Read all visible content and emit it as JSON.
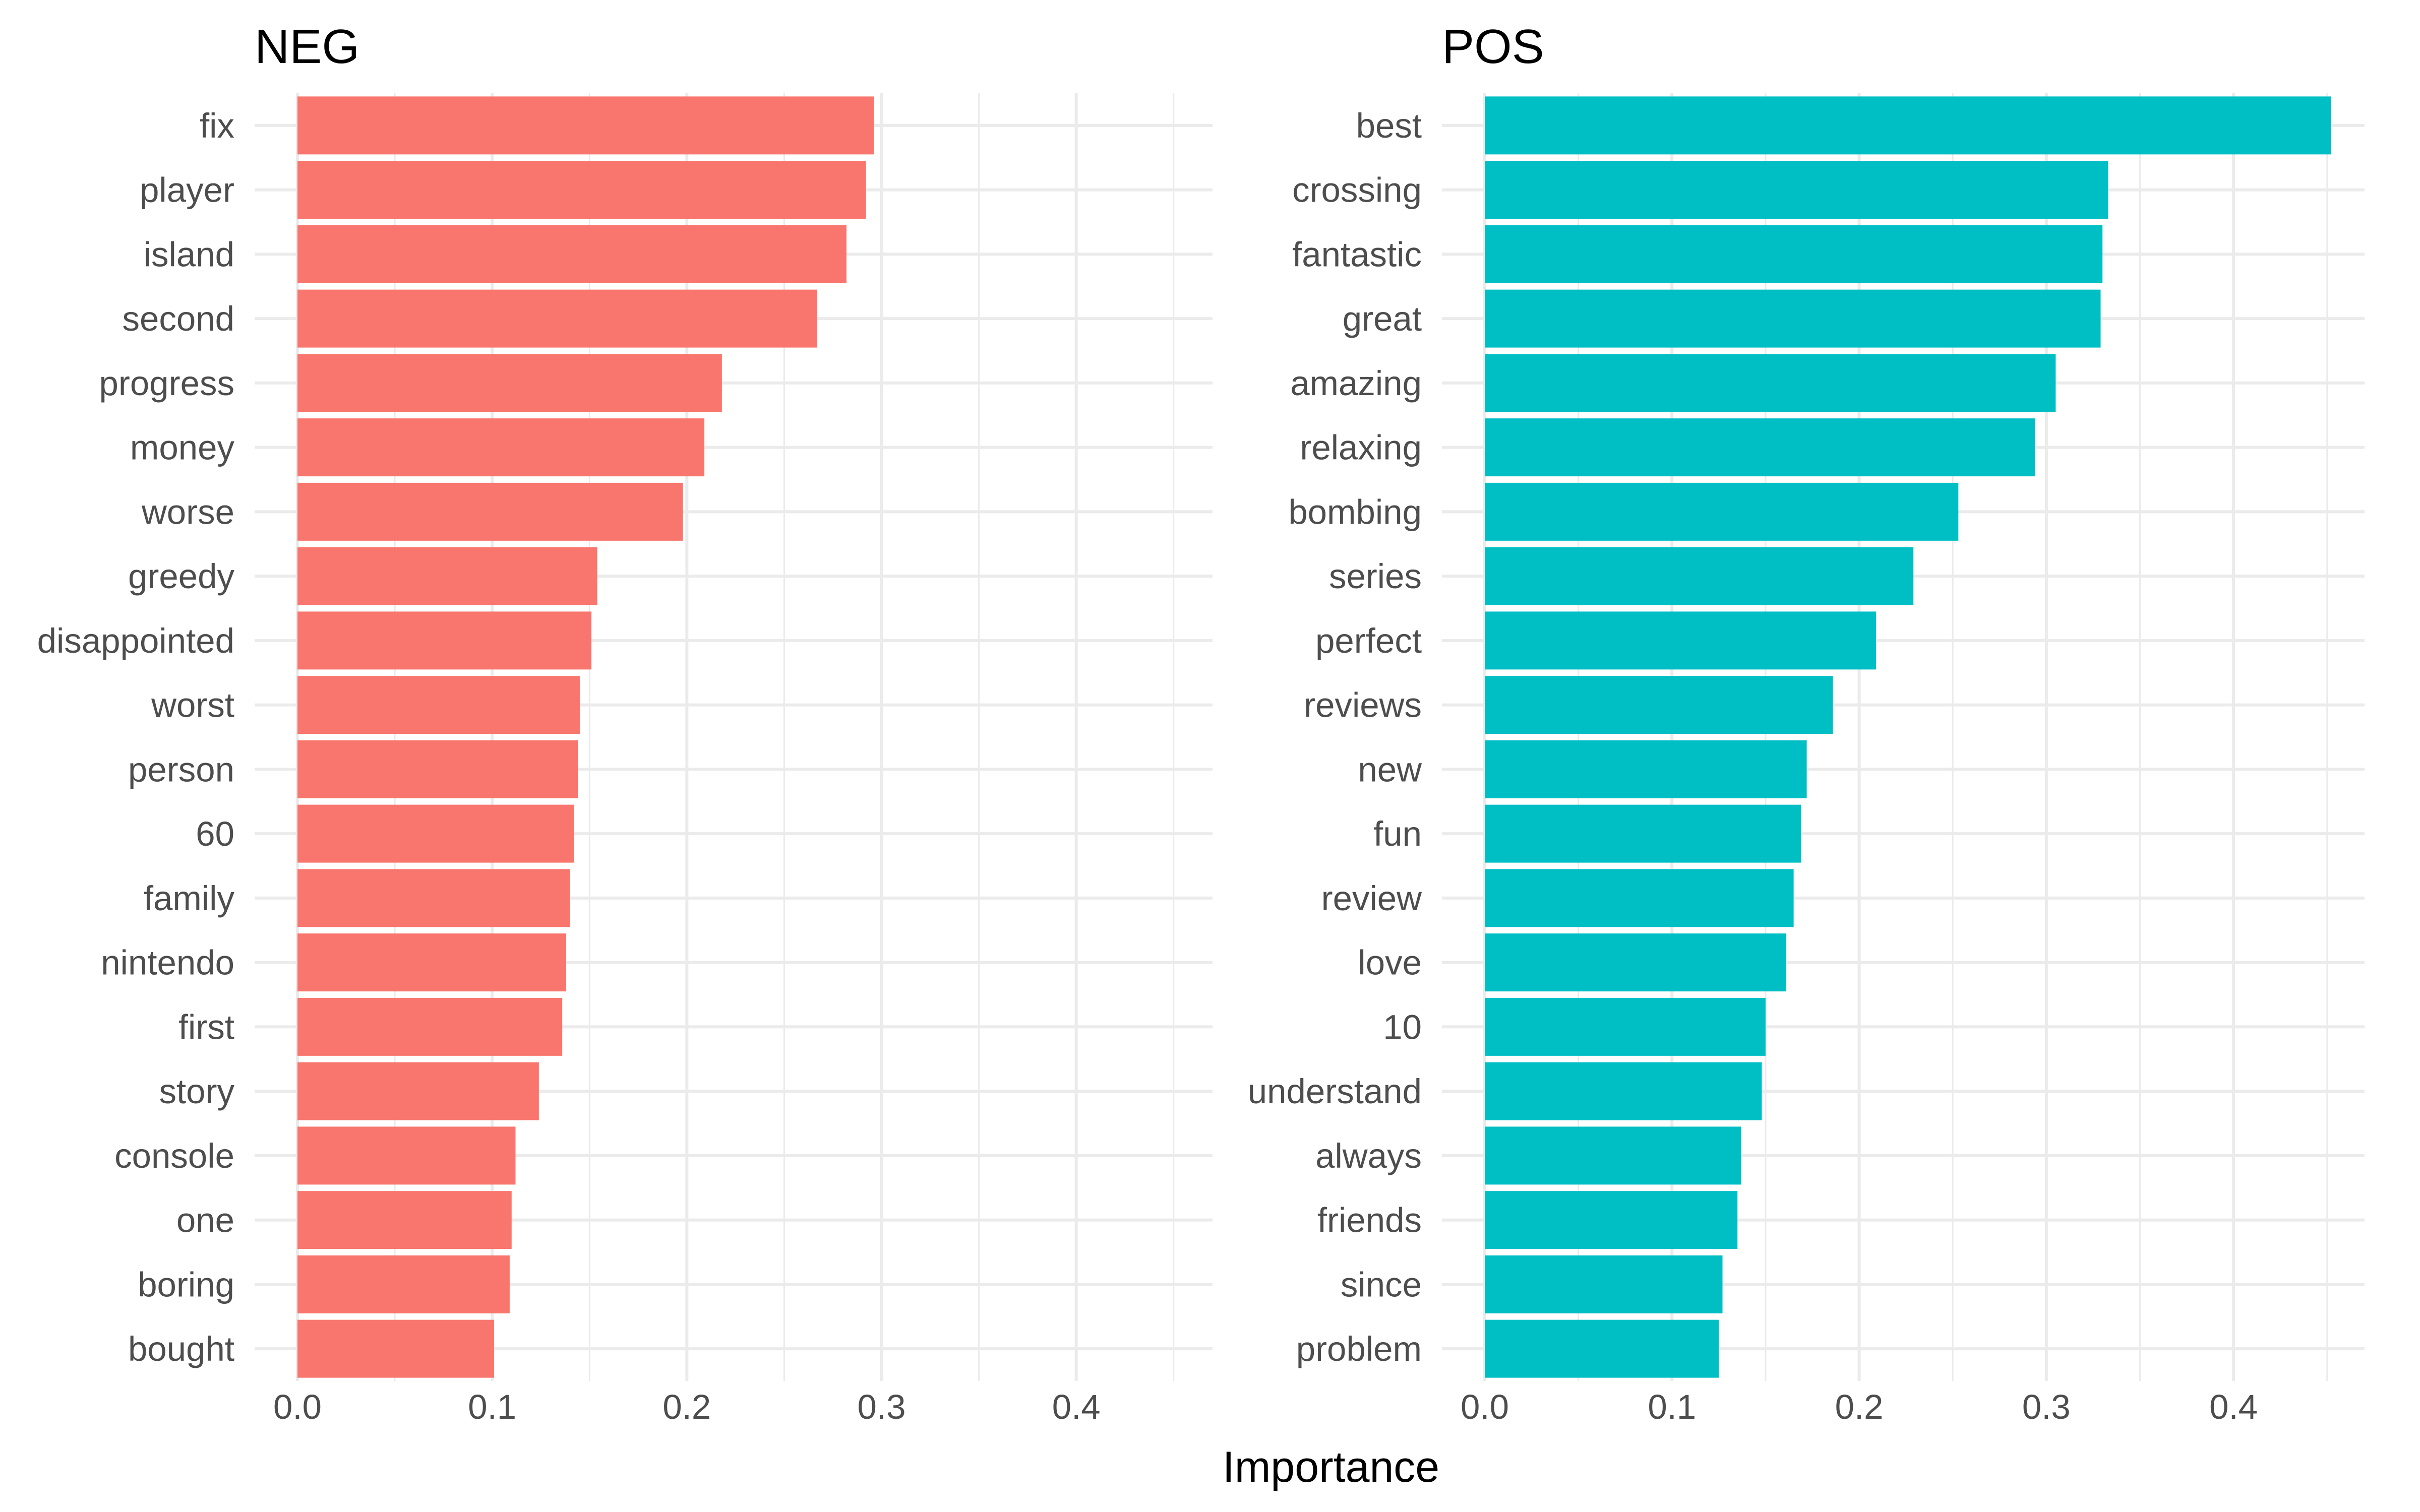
{
  "chart_data": {
    "type": "bar",
    "orientation": "horizontal",
    "xlabel": "Importance",
    "xlim": [
      0,
      0.47
    ],
    "xticks": [
      "0.0",
      "0.1",
      "0.2",
      "0.3",
      "0.4"
    ],
    "grid": true,
    "panels": [
      {
        "title": "NEG",
        "color": "#F8766D",
        "categories": [
          "fix",
          "player",
          "island",
          "second",
          "progress",
          "money",
          "worse",
          "greedy",
          "disappointed",
          "worst",
          "person",
          "60",
          "family",
          "nintendo",
          "first",
          "story",
          "console",
          "one",
          "boring",
          "bought"
        ],
        "values": [
          0.296,
          0.292,
          0.282,
          0.267,
          0.218,
          0.209,
          0.198,
          0.154,
          0.151,
          0.145,
          0.144,
          0.142,
          0.14,
          0.138,
          0.136,
          0.124,
          0.112,
          0.11,
          0.109,
          0.101
        ]
      },
      {
        "title": "POS",
        "color": "#00BFC4",
        "categories": [
          "best",
          "crossing",
          "fantastic",
          "great",
          "amazing",
          "relaxing",
          "bombing",
          "series",
          "perfect",
          "reviews",
          "new",
          "fun",
          "review",
          "love",
          "10",
          "understand",
          "always",
          "friends",
          "since",
          "problem"
        ],
        "values": [
          0.452,
          0.333,
          0.33,
          0.329,
          0.305,
          0.294,
          0.253,
          0.229,
          0.209,
          0.186,
          0.172,
          0.169,
          0.165,
          0.161,
          0.15,
          0.148,
          0.137,
          0.135,
          0.127,
          0.125
        ]
      }
    ]
  }
}
